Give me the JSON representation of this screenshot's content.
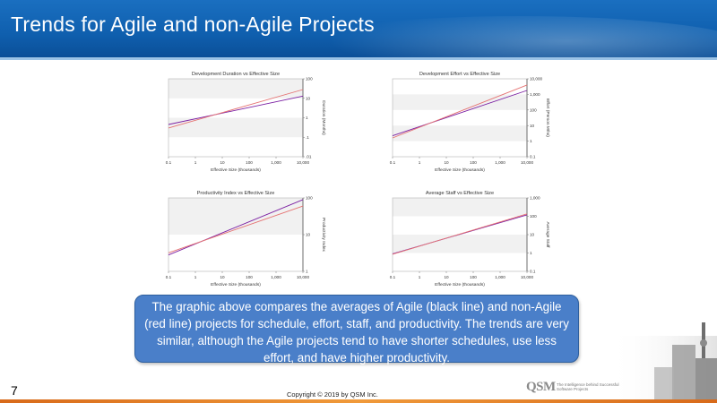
{
  "slide": {
    "title": "Trends for Agile and non-Agile Projects",
    "caption": "The graphic above compares the averages of Agile (black line) and non-Agile (red line) projects for schedule, effort, staff, and productivity.  The trends are very similar, although the Agile projects tend to have shorter schedules, use less effort, and have higher productivity.",
    "page_number": "7",
    "copyright": "Copyright © 2019 by QSM Inc.",
    "logo_text": "QSM",
    "logo_tagline": "The Intelligence behind Successful Software Projects"
  },
  "colors": {
    "title_bar": "#1565b5",
    "agile_line": "#7b1fa2",
    "non_agile_line": "#e57373",
    "caption_box": "#4a7fc9"
  },
  "chart_data": [
    {
      "type": "line",
      "title": "Development Duration vs Effective Size",
      "xlabel": "Effective Size (thousands)",
      "ylabel": "Duration (Months)",
      "x_scale": "log",
      "y_scale": "log",
      "xlim": [
        0.1,
        10000
      ],
      "ylim": [
        0.01,
        100
      ],
      "x_ticks": [
        "0.1",
        "1",
        "10",
        "100",
        "1,000",
        "10,000"
      ],
      "y_ticks": [
        "100",
        "10",
        "1",
        ".1",
        ".01"
      ],
      "series": [
        {
          "color": "#7b1fa2",
          "x": [
            0.1,
            10000
          ],
          "y": [
            0.45,
            13
          ]
        },
        {
          "color": "#e57373",
          "x": [
            0.1,
            10000
          ],
          "y": [
            0.3,
            28
          ]
        }
      ]
    },
    {
      "type": "line",
      "title": "Development Effort vs Effective Size",
      "xlabel": "Effective Size (thousands)",
      "ylabel": "Effort (Person Mths)",
      "x_scale": "log",
      "y_scale": "log",
      "xlim": [
        0.1,
        10000
      ],
      "ylim": [
        0.1,
        10000
      ],
      "x_ticks": [
        "0.1",
        "1",
        "10",
        "100",
        "1,000",
        "10,000"
      ],
      "y_ticks": [
        "10,000",
        "1,000",
        "100",
        "10",
        "1",
        "0.1"
      ],
      "series": [
        {
          "color": "#7b1fa2",
          "x": [
            0.1,
            10000
          ],
          "y": [
            2.2,
            1800
          ]
        },
        {
          "color": "#e57373",
          "x": [
            0.1,
            10000
          ],
          "y": [
            1.6,
            4000
          ]
        }
      ]
    },
    {
      "type": "line",
      "title": "Productivity Index vs Effective Size",
      "xlabel": "Effective Size (thousands)",
      "ylabel": "Productivity Index",
      "x_scale": "log",
      "y_scale": "log",
      "xlim": [
        0.1,
        10000
      ],
      "ylim": [
        1,
        100
      ],
      "x_ticks": [
        "0.1",
        "1",
        "10",
        "100",
        "1,000",
        "10,000"
      ],
      "y_ticks": [
        "100",
        "10",
        "1"
      ],
      "series": [
        {
          "color": "#7b1fa2",
          "x": [
            0.1,
            10000
          ],
          "y": [
            2.8,
            90
          ]
        },
        {
          "color": "#e57373",
          "x": [
            0.1,
            10000
          ],
          "y": [
            3.2,
            60
          ]
        }
      ]
    },
    {
      "type": "line",
      "title": "Average Staff vs Effective Size",
      "xlabel": "Effective Size (thousands)",
      "ylabel": "Average Staff",
      "x_scale": "log",
      "y_scale": "log",
      "xlim": [
        0.1,
        10000
      ],
      "ylim": [
        0.1,
        1000
      ],
      "x_ticks": [
        "0.1",
        "1",
        "10",
        "100",
        "1,000",
        "10,000"
      ],
      "y_ticks": [
        "1,000",
        "100",
        "10",
        "1",
        "0.1"
      ],
      "series": [
        {
          "color": "#7b1fa2",
          "x": [
            0.1,
            10000
          ],
          "y": [
            0.9,
            120
          ]
        },
        {
          "color": "#e57373",
          "x": [
            0.1,
            10000
          ],
          "y": [
            0.85,
            135
          ]
        }
      ]
    }
  ]
}
